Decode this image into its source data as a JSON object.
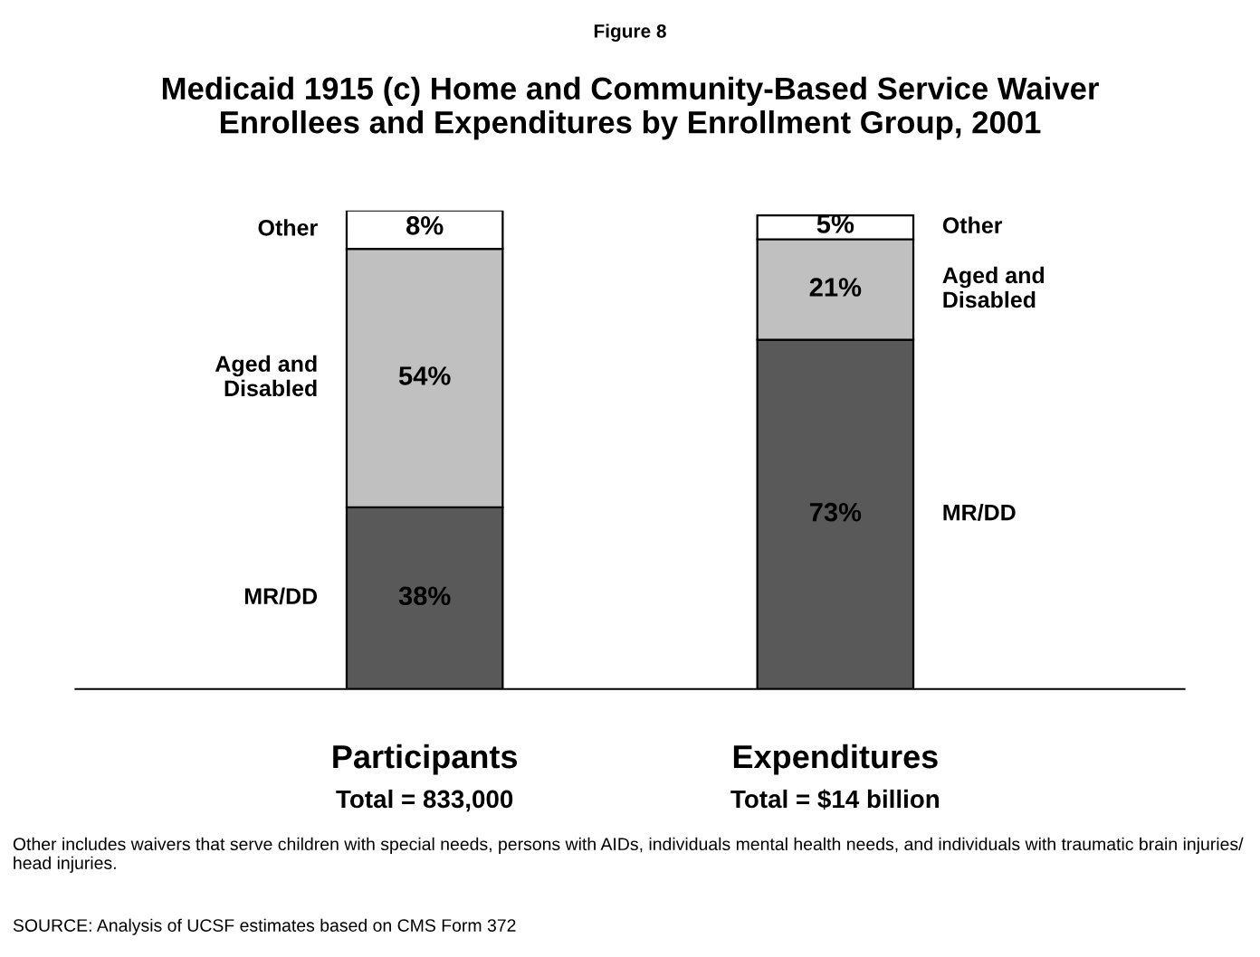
{
  "chart_data": {
    "type": "bar",
    "stacked": true,
    "subtitle": "Figure 8",
    "title": "Medicaid 1915 (c) Home and Community-Based Service Waiver\nEnrollees and Expenditures by Enrollment Group, 2001",
    "categories": [
      "Participants\nTotal = 833,000",
      "Expenditures\nTotal = $14 billion"
    ],
    "series": [
      {
        "name": "MR/DD",
        "color": "#595959",
        "values": [
          38,
          73
        ],
        "value_labels": [
          "38%",
          "73%"
        ]
      },
      {
        "name": "Aged and\nDisabled",
        "color": "#c0c0c0",
        "values": [
          54,
          21
        ],
        "value_labels": [
          "54%",
          "21%"
        ]
      },
      {
        "name": "Other",
        "color": "#ffffff",
        "values": [
          8,
          5
        ],
        "value_labels": [
          "8%",
          "5%"
        ]
      }
    ],
    "legend": false,
    "annotations": [
      "Other includes waivers that serve children with special needs, persons with AIDs, individuals mental health needs, and individuals with traumatic brain injuries/ head injuries.",
      "SOURCE: Analysis of UCSF estimates based on CMS Form 372"
    ]
  }
}
